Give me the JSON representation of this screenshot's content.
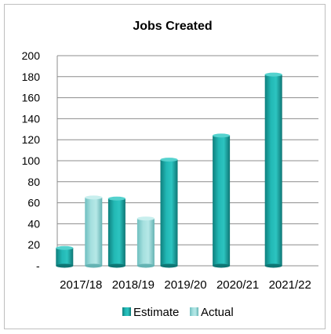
{
  "chart_data": {
    "type": "bar",
    "title": "Jobs Created",
    "categories": [
      "2017/18",
      "2018/19",
      "2019/20",
      "2020/21",
      "2021/22"
    ],
    "series": [
      {
        "name": "Estimate",
        "values": [
          17,
          64,
          101,
          124,
          182
        ],
        "color": "#1aa7a4"
      },
      {
        "name": "Actual",
        "values": [
          65,
          45,
          null,
          null,
          null
        ],
        "color": "#8fd3d3"
      }
    ],
    "ylim": [
      0,
      200
    ],
    "yticks": [
      {
        "value": 0,
        "label": "-"
      },
      {
        "value": 20,
        "label": "20"
      },
      {
        "value": 40,
        "label": "40"
      },
      {
        "value": 60,
        "label": "60"
      },
      {
        "value": 80,
        "label": "80"
      },
      {
        "value": 100,
        "label": "100"
      },
      {
        "value": 120,
        "label": "120"
      },
      {
        "value": 140,
        "label": "140"
      },
      {
        "value": 160,
        "label": "160"
      },
      {
        "value": 180,
        "label": "180"
      },
      {
        "value": 200,
        "label": "200"
      }
    ],
    "grid": true,
    "legend_position": "bottom"
  }
}
